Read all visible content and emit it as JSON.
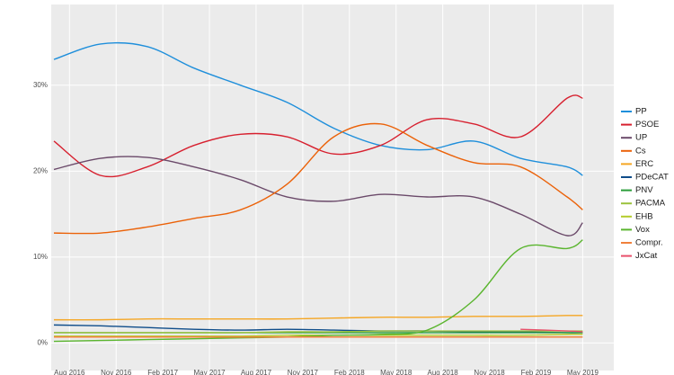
{
  "chart_data": {
    "type": "line",
    "x": [
      "2016-07",
      "2016-10",
      "2017-01",
      "2017-04",
      "2017-07",
      "2017-10",
      "2018-01",
      "2018-04",
      "2018-07",
      "2018-10",
      "2019-01",
      "2019-04",
      "2019-05"
    ],
    "series": [
      {
        "name": "PP",
        "color": "#1f8fdb",
        "values": [
          33,
          34.8,
          34.5,
          32,
          30,
          28,
          25,
          23,
          22.5,
          23.5,
          21.5,
          20.5,
          19.5
        ]
      },
      {
        "name": "PSOE",
        "color": "#d7202f",
        "values": [
          23.5,
          19.5,
          20.5,
          23,
          24.3,
          24,
          22,
          23,
          26,
          25.5,
          24,
          28.5,
          28.5
        ]
      },
      {
        "name": "UP",
        "color": "#6b4a6a",
        "values": [
          20.2,
          21.5,
          21.6,
          20.5,
          19,
          17,
          16.5,
          17.3,
          17,
          17,
          15,
          12.5,
          14
        ]
      },
      {
        "name": "Cs",
        "color": "#eb6209",
        "values": [
          12.8,
          12.8,
          13.5,
          14.5,
          15.5,
          18.5,
          24,
          25.5,
          23,
          21,
          20.5,
          17,
          15.5
        ]
      },
      {
        "name": "ERC",
        "color": "#f5a623",
        "values": [
          2.7,
          2.7,
          2.8,
          2.8,
          2.8,
          2.8,
          2.9,
          3,
          3,
          3.1,
          3.1,
          3.2,
          3.2
        ]
      },
      {
        "name": "PDeCAT",
        "color": "#0f4d8a",
        "values": [
          2.1,
          2,
          1.8,
          1.6,
          1.5,
          1.6,
          1.5,
          1.4,
          1.4,
          1.3,
          1.3,
          1.2,
          1.2
        ]
      },
      {
        "name": "PNV",
        "color": "#2a9d3a",
        "values": [
          1.2,
          1.2,
          1.2,
          1.2,
          1.2,
          1.2,
          1.2,
          1.2,
          1.2,
          1.2,
          1.2,
          1.2,
          1.2
        ]
      },
      {
        "name": "PACMA",
        "color": "#9bc23c",
        "values": [
          1.2,
          1.2,
          1.2,
          1.2,
          1.2,
          1.3,
          1.3,
          1.4,
          1.4,
          1.4,
          1.4,
          1.4,
          1.4
        ]
      },
      {
        "name": "EHB",
        "color": "#b4cc2a",
        "values": [
          0.8,
          0.8,
          0.8,
          0.8,
          0.8,
          0.9,
          0.9,
          0.9,
          0.9,
          0.9,
          0.9,
          1,
          1
        ]
      },
      {
        "name": "Vox",
        "color": "#5ab52e",
        "values": [
          0.2,
          0.3,
          0.4,
          0.5,
          0.6,
          0.7,
          0.9,
          1,
          1.5,
          5,
          11,
          11,
          12
        ]
      },
      {
        "name": "Compr.",
        "color": "#f0813c",
        "values": [
          0.7,
          0.7,
          0.7,
          0.7,
          0.7,
          0.7,
          0.7,
          0.7,
          0.7,
          0.7,
          0.7,
          0.7,
          0.7
        ]
      },
      {
        "name": "JxCat",
        "color": "#e8506b",
        "values": [
          null,
          null,
          null,
          null,
          null,
          null,
          null,
          null,
          null,
          null,
          1.6,
          1.4,
          1.3
        ]
      }
    ],
    "xlim": [
      "2016-07",
      "2019-07"
    ],
    "xticks": [
      {
        "value": "2016-08",
        "label": "Aug 2016"
      },
      {
        "value": "2016-11",
        "label": "Nov 2016"
      },
      {
        "value": "2017-02",
        "label": "Feb 2017"
      },
      {
        "value": "2017-05",
        "label": "May 2017"
      },
      {
        "value": "2017-08",
        "label": "Aug 2017"
      },
      {
        "value": "2017-11",
        "label": "Nov 2017"
      },
      {
        "value": "2018-02",
        "label": "Feb 2018"
      },
      {
        "value": "2018-05",
        "label": "May 2018"
      },
      {
        "value": "2018-08",
        "label": "Aug 2018"
      },
      {
        "value": "2018-11",
        "label": "Nov 2018"
      },
      {
        "value": "2019-02",
        "label": "Feb 2019"
      },
      {
        "value": "2019-05",
        "label": "May 2019"
      }
    ],
    "ylim": [
      -3.2,
      39.4
    ],
    "yticks": [
      {
        "value": 0,
        "label": "0%"
      },
      {
        "value": 10,
        "label": "10%"
      },
      {
        "value": 20,
        "label": "20%"
      },
      {
        "value": 30,
        "label": "30%"
      }
    ],
    "grid": true
  }
}
